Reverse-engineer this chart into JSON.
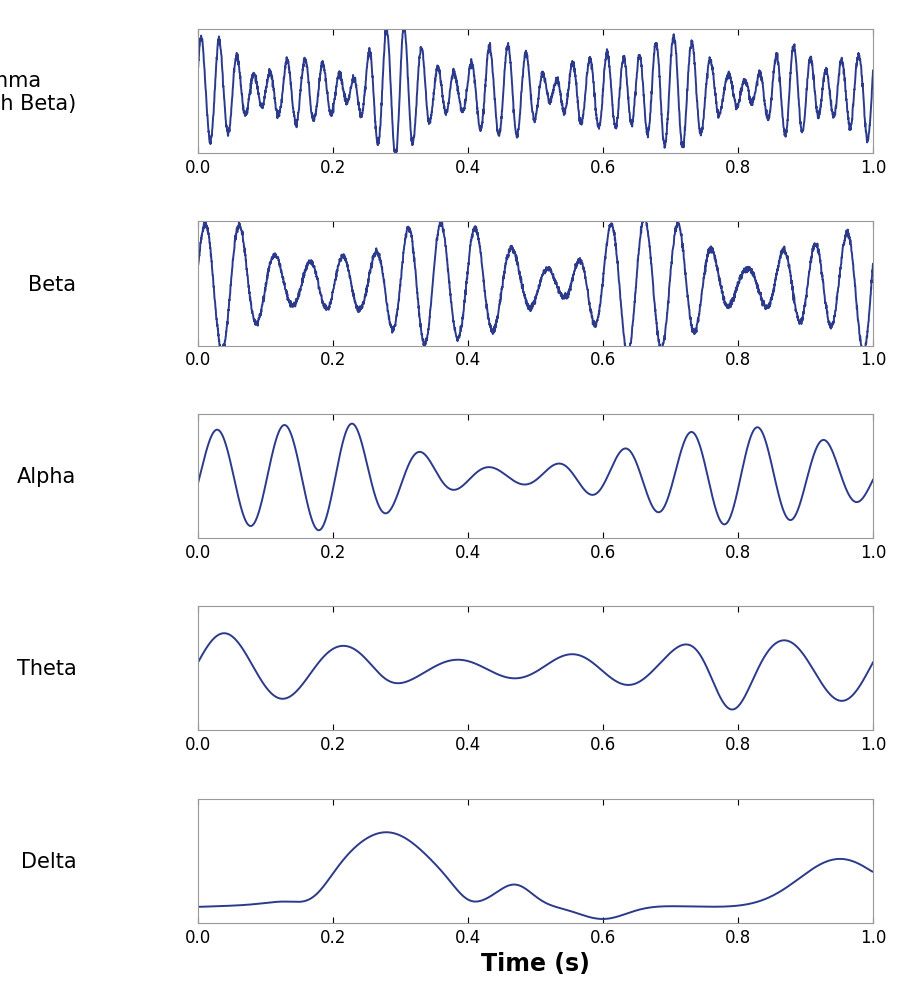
{
  "xlabel": "Time (s)",
  "labels": [
    "Gamma\n(high Beta)",
    "Beta",
    "Alpha",
    "Theta",
    "Delta"
  ],
  "line_color": "#2B3A8A",
  "line_width": 1.4,
  "xlim": [
    0.0,
    1.0
  ],
  "xticks": [
    0.0,
    0.2,
    0.4,
    0.6,
    0.8,
    1.0
  ],
  "xtick_labels": [
    "0.0",
    "0.2",
    "0.4",
    "0.6",
    "0.8",
    "1.0"
  ],
  "figsize": [
    9.0,
    10.04
  ],
  "dpi": 100,
  "bg_color": "#ffffff",
  "label_fontsize": 15,
  "xlabel_fontsize": 17,
  "tick_fontsize": 12,
  "spine_color": "#999999"
}
